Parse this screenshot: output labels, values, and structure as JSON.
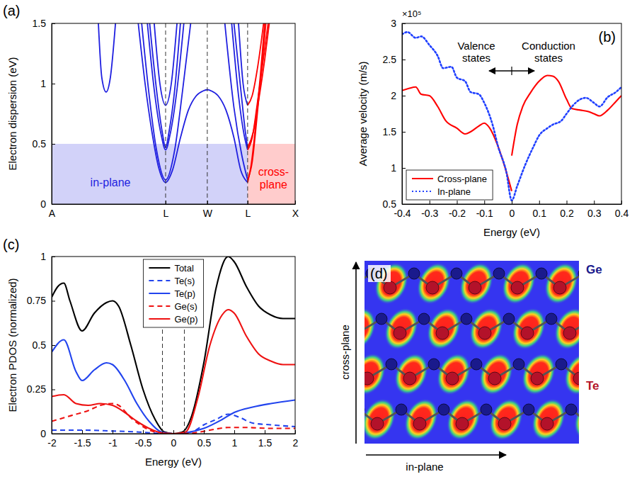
{
  "chart_data": [
    {
      "type": "line",
      "panel": "(a)",
      "y_label": "Electron dispersion (eV)",
      "xlim": [
        0,
        2.137
      ],
      "ylim": [
        0,
        1.5
      ],
      "xticks": [
        {
          "value": 0,
          "label": "A"
        },
        {
          "value": 1,
          "label": "L"
        },
        {
          "value": 1.366,
          "label": "W"
        },
        {
          "value": 1.72,
          "label": "L"
        },
        {
          "value": 2.137,
          "label": "X"
        }
      ],
      "yticks": [
        0,
        0.5,
        1,
        1.5
      ],
      "reference_lines": [
        1,
        1.366,
        1.72
      ],
      "regions": [
        {
          "label": "in-plane",
          "x": [
            0,
            1.72
          ],
          "y": [
            0,
            0.5
          ],
          "color": "#1f1fe0"
        },
        {
          "label": "cross-plane",
          "x": [
            1.72,
            2.137
          ],
          "y": [
            0,
            0.5
          ],
          "color": "#ff0000"
        }
      ],
      "series": [
        {
          "color": "#1f1fe0",
          "x": [
            0.41,
            0.44,
            0.478,
            0.515,
            0.56
          ],
          "values": [
            1.5,
            1.05,
            0.93,
            1.05,
            1.5
          ]
        },
        {
          "color": "#1f1fe0",
          "x": [
            0.76,
            0.82,
            0.88,
            0.94,
            1,
            1.06,
            1.13,
            1.2,
            1.27,
            1.33,
            1.366,
            1.4,
            1.46,
            1.53,
            1.6,
            1.66,
            1.72
          ],
          "values": [
            1.5,
            1,
            0.6,
            0.3,
            0.18,
            0.28,
            0.55,
            0.78,
            0.9,
            0.94,
            0.95,
            0.94,
            0.9,
            0.78,
            0.55,
            0.28,
            0.18
          ]
        },
        {
          "color": "#1f1fe0",
          "x": [
            0.79,
            0.85,
            0.92,
            1,
            1.08,
            1.15,
            1.22
          ],
          "values": [
            1.5,
            0.95,
            0.45,
            0.2,
            0.45,
            0.95,
            1.5
          ]
        },
        {
          "color": "#1f1fe0",
          "x": [
            0.84,
            0.9,
            0.96,
            1,
            1.04,
            1.1,
            1.16
          ],
          "values": [
            1.5,
            0.95,
            0.58,
            0.45,
            0.58,
            0.95,
            1.5
          ]
        },
        {
          "color": "#1f1fe0",
          "x": [
            0.86,
            0.92,
            0.97,
            1,
            1.03,
            1.08,
            1.13
          ],
          "values": [
            1.5,
            0.95,
            0.6,
            0.47,
            0.6,
            0.95,
            1.5
          ]
        },
        {
          "color": "#1f1fe0",
          "x": [
            0.9,
            0.95,
            1,
            1.05,
            1.1
          ],
          "values": [
            1.5,
            1,
            0.82,
            1,
            1.5
          ]
        },
        {
          "color": "#1f1fe0",
          "x": [
            1.52,
            1.6,
            1.67,
            1.72
          ],
          "values": [
            1.5,
            0.8,
            0.4,
            0.2
          ]
        },
        {
          "color": "#1f1fe0",
          "x": [
            1.58,
            1.64,
            1.69,
            1.72
          ],
          "values": [
            1.5,
            0.9,
            0.57,
            0.45
          ]
        },
        {
          "color": "#1f1fe0",
          "x": [
            1.6,
            1.66,
            1.7,
            1.72
          ],
          "values": [
            1.5,
            0.95,
            0.6,
            0.47
          ]
        },
        {
          "color": "#1f1fe0",
          "x": [
            1.64,
            1.68,
            1.72
          ],
          "values": [
            1.5,
            1,
            0.82
          ]
        },
        {
          "color": "#ff0000",
          "x": [
            1.72,
            1.75,
            1.79,
            1.83,
            1.87
          ],
          "values": [
            0.18,
            0.32,
            0.65,
            1.05,
            1.5
          ]
        },
        {
          "color": "#ff0000",
          "x": [
            1.72,
            1.76,
            1.8,
            1.84,
            1.88
          ],
          "values": [
            0.2,
            0.35,
            0.7,
            1.1,
            1.5
          ]
        },
        {
          "color": "#ff0000",
          "x": [
            1.72,
            1.76,
            1.8,
            1.85,
            1.9
          ],
          "values": [
            0.45,
            0.55,
            0.8,
            1.15,
            1.5
          ]
        },
        {
          "color": "#ff0000",
          "x": [
            1.72,
            1.77,
            1.82,
            1.87,
            1.91
          ],
          "values": [
            0.47,
            0.6,
            0.88,
            1.2,
            1.5
          ]
        },
        {
          "color": "#ff0000",
          "x": [
            1.72,
            1.76,
            1.81,
            1.86
          ],
          "values": [
            0.82,
            0.9,
            1.15,
            1.5
          ]
        }
      ]
    },
    {
      "type": "line",
      "panel": "(b)",
      "x_label": "Energy (eV)",
      "y_label": "Average velocity (m/s)",
      "y_multiplier": "×10⁵",
      "xlim": [
        -0.4,
        0.4
      ],
      "ylim": [
        0.5,
        3
      ],
      "xticks": [
        -0.4,
        -0.3,
        -0.2,
        -0.1,
        0,
        0.1,
        0.2,
        0.3,
        0.4
      ],
      "yticks": [
        0.5,
        1,
        1.5,
        2,
        2.5,
        3
      ],
      "annotations": [
        "Valence states",
        "Conduction states"
      ],
      "legend": "lower left",
      "series": [
        {
          "name": "Cross-plane",
          "color": "#ff0000",
          "line_style": "solid",
          "x": [
            -0.4,
            -0.375,
            -0.35,
            -0.33,
            -0.3,
            -0.27,
            -0.24,
            -0.2,
            -0.17,
            -0.15,
            -0.12,
            -0.1,
            -0.08,
            -0.05,
            -0.02,
            0,
            null,
            0,
            0.02,
            0.04,
            0.07,
            0.1,
            0.13,
            0.15,
            0.17,
            0.2,
            0.22,
            0.25,
            0.28,
            0.3,
            0.32,
            0.35,
            0.38,
            0.4
          ],
          "values": [
            2.07,
            2.1,
            2.12,
            2.02,
            2,
            1.85,
            1.65,
            1.55,
            1.47,
            1.5,
            1.58,
            1.62,
            1.55,
            1.3,
            0.95,
            0.68,
            null,
            1.17,
            1.6,
            1.85,
            2.05,
            2.2,
            2.28,
            2.27,
            2.2,
            1.95,
            1.82,
            1.8,
            1.78,
            1.75,
            1.72,
            1.8,
            1.92,
            2
          ]
        },
        {
          "name": "In-plane",
          "color": "#2040ff",
          "line_style": "dotted",
          "x": [
            -0.4,
            -0.38,
            -0.35,
            -0.33,
            -0.3,
            -0.27,
            -0.25,
            -0.22,
            -0.2,
            -0.17,
            -0.15,
            -0.12,
            -0.1,
            -0.07,
            -0.05,
            -0.02,
            0,
            0.02,
            0.05,
            0.08,
            0.1,
            0.13,
            0.15,
            0.18,
            0.2,
            0.22,
            0.25,
            0.27,
            0.3,
            0.32,
            0.35,
            0.38,
            0.4
          ],
          "values": [
            2.85,
            2.88,
            2.8,
            2.82,
            2.7,
            2.55,
            2.38,
            2.4,
            2.25,
            2.2,
            2.05,
            2.02,
            1.9,
            1.6,
            1.3,
            0.95,
            0.55,
            0.75,
            1.05,
            1.3,
            1.45,
            1.55,
            1.6,
            1.65,
            1.75,
            1.85,
            1.95,
            1.97,
            1.9,
            1.85,
            1.98,
            2.05,
            2.12
          ]
        }
      ]
    },
    {
      "type": "line",
      "panel": "(c)",
      "x_label": "Energy (eV)",
      "y_label": "Electron PDOS (normalized)",
      "xlim": [
        -2,
        2
      ],
      "ylim": [
        0,
        1
      ],
      "xticks": [
        -2,
        -1.5,
        -1,
        -0.5,
        0,
        0.5,
        1,
        1.5,
        2
      ],
      "yticks": [
        0,
        0.25,
        0.5,
        0.75,
        1
      ],
      "reference_lines": [
        -0.18,
        0.18
      ],
      "legend": "upper center",
      "series": [
        {
          "name": "Total",
          "color": "#000000",
          "line_style": "solid",
          "x": [
            -2,
            -1.9,
            -1.8,
            -1.7,
            -1.5,
            -1.3,
            -1.1,
            -1,
            -0.9,
            -0.7,
            -0.5,
            -0.3,
            -0.15,
            0,
            0.15,
            0.3,
            0.5,
            0.7,
            0.9,
            1,
            1.2,
            1.4,
            1.6,
            1.8,
            2
          ],
          "values": [
            0.77,
            0.83,
            0.85,
            0.75,
            0.58,
            0.68,
            0.74,
            0.75,
            0.72,
            0.5,
            0.25,
            0.08,
            0.01,
            0,
            0.01,
            0.1,
            0.4,
            0.82,
            1,
            0.97,
            0.83,
            0.72,
            0.67,
            0.65,
            0.65
          ]
        },
        {
          "name": "Te(s)",
          "color": "#2244ee",
          "line_style": "dashed",
          "x": [
            -2,
            -1.5,
            -1,
            -0.6,
            -0.3,
            0,
            0.3,
            0.5,
            0.7,
            0.9,
            1.1,
            1.3,
            1.6,
            2
          ],
          "values": [
            0.02,
            0.02,
            0.015,
            0.01,
            0.003,
            0,
            0.01,
            0.05,
            0.08,
            0.11,
            0.09,
            0.06,
            0.05,
            0.04
          ]
        },
        {
          "name": "Te(p)",
          "color": "#2244ee",
          "line_style": "solid",
          "x": [
            -2,
            -1.8,
            -1.6,
            -1.5,
            -1.3,
            -1.1,
            -1,
            -0.8,
            -0.6,
            -0.4,
            -0.2,
            0,
            0.2,
            0.5,
            0.8,
            1,
            1.3,
            1.6,
            2
          ],
          "values": [
            0.46,
            0.53,
            0.35,
            0.3,
            0.36,
            0.4,
            0.39,
            0.3,
            0.17,
            0.07,
            0.01,
            0,
            0.005,
            0.03,
            0.08,
            0.12,
            0.15,
            0.17,
            0.19
          ]
        },
        {
          "name": "Ge(s)",
          "color": "#ee1111",
          "line_style": "dashed",
          "x": [
            -2,
            -1.8,
            -1.6,
            -1.4,
            -1.2,
            -1,
            -0.9,
            -0.7,
            -0.5,
            -0.3,
            0,
            0.3,
            0.6,
            0.9,
            1.2,
            1.6,
            2
          ],
          "values": [
            0.07,
            0.09,
            0.11,
            0.13,
            0.16,
            0.17,
            0.16,
            0.09,
            0.04,
            0.01,
            0,
            0.003,
            0.02,
            0.035,
            0.035,
            0.03,
            0.03
          ]
        },
        {
          "name": "Ge(p)",
          "color": "#ee1111",
          "line_style": "solid",
          "x": [
            -2,
            -1.8,
            -1.6,
            -1.4,
            -1.2,
            -1,
            -0.8,
            -0.6,
            -0.4,
            -0.2,
            0,
            0.2,
            0.4,
            0.6,
            0.8,
            0.9,
            1,
            1.2,
            1.4,
            1.6,
            1.8,
            2
          ],
          "values": [
            0.21,
            0.22,
            0.17,
            0.16,
            0.17,
            0.16,
            0.12,
            0.07,
            0.03,
            0.005,
            0,
            0.01,
            0.2,
            0.5,
            0.67,
            0.7,
            0.68,
            0.55,
            0.45,
            0.41,
            0.39,
            0.39
          ]
        }
      ]
    }
  ],
  "diagram": {
    "panel": "(d)",
    "atoms": [
      {
        "label": "Ge",
        "color": "#1a1a8c"
      },
      {
        "label": "Te",
        "color": "#b3122a"
      }
    ],
    "axes": {
      "vertical": "cross-plane",
      "horizontal": "in-plane"
    }
  }
}
